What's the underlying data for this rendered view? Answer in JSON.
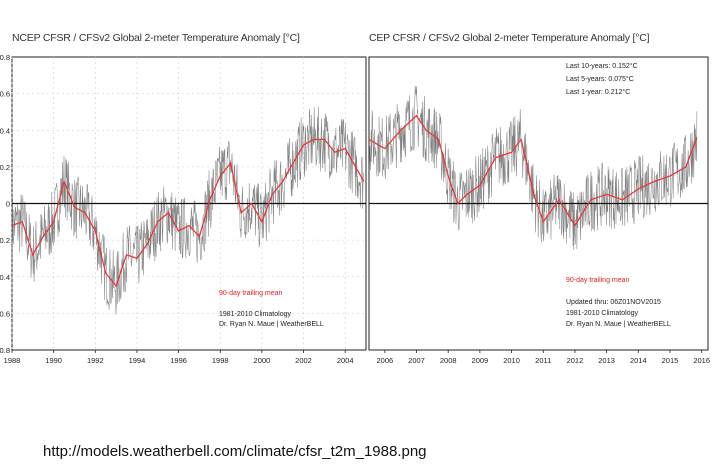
{
  "left_panel": {
    "title": "NCEP CFSR / CFSv2 Global 2-meter Temperature Anomaly [°C]",
    "y_ticks": [
      "0.8",
      "0.6",
      "0.4",
      "0.2",
      "0",
      "-0.2",
      "-0.4",
      "-0.6",
      "-0.8"
    ],
    "x_ticks": [
      "1988",
      "1990",
      "1992",
      "1994",
      "1996",
      "1998",
      "2000",
      "2002",
      "2004"
    ],
    "mean_label": "90-day trailing mean",
    "climatology_label": "1981-2010 Climatology",
    "credit_label": "Dr. Ryan N. Maue | WeatherBELL"
  },
  "right_panel": {
    "title": "CEP CFSR / CFSv2 Global 2-meter Temperature Anomaly [°C]",
    "x_ticks": [
      "2006",
      "2007",
      "2008",
      "2009",
      "2010",
      "2011",
      "2012",
      "2013",
      "2014",
      "2015",
      "2016"
    ],
    "stats": [
      "Last 10-years: 0.152°C",
      "Last 5-years: 0.075°C",
      "Last 1-year:  0.212°C"
    ],
    "mean_label": "90-day trailing mean",
    "updated_label": "Updated thru: 06Z01NOV2015",
    "climatology_label": "1981-2010 Climatology",
    "credit_label": "Dr. Ryan N. Maue | WeatherBELL"
  },
  "source_url": "http://models.weatherbell.com/climate/cfsr_t2m_1988.png",
  "colors": {
    "mean_line": "#e8383d",
    "daily_line": "#555555",
    "zero_line": "#111111",
    "grid": "#cfcfcf"
  },
  "chart_data": [
    {
      "type": "line",
      "title": "NCEP CFSR / CFSv2 Global 2-meter Temperature Anomaly [°C]",
      "xlabel": "",
      "ylabel": "",
      "xlim": [
        1988,
        2005
      ],
      "ylim": [
        -0.8,
        0.8
      ],
      "grid": true,
      "series": [
        {
          "name": "90-day trailing mean",
          "x": [
            1988.0,
            1988.5,
            1989.0,
            1989.5,
            1990.0,
            1990.5,
            1991.0,
            1991.5,
            1992.0,
            1992.5,
            1993.0,
            1993.5,
            1994.0,
            1994.5,
            1995.0,
            1995.5,
            1996.0,
            1996.5,
            1997.0,
            1997.5,
            1998.0,
            1998.5,
            1999.0,
            1999.5,
            2000.0,
            2000.5,
            2001.0,
            2001.5,
            2002.0,
            2002.5,
            2003.0,
            2003.5,
            2004.0,
            2004.5,
            2004.9
          ],
          "y": [
            -0.12,
            -0.1,
            -0.28,
            -0.18,
            -0.1,
            0.12,
            -0.02,
            -0.05,
            -0.15,
            -0.38,
            -0.45,
            -0.28,
            -0.3,
            -0.22,
            -0.1,
            -0.05,
            -0.15,
            -0.12,
            -0.18,
            0.02,
            0.15,
            0.22,
            -0.05,
            0.0,
            -0.1,
            0.05,
            0.12,
            0.22,
            0.32,
            0.35,
            0.35,
            0.28,
            0.3,
            0.2,
            0.12
          ]
        }
      ]
    },
    {
      "type": "line",
      "title": "CEP CFSR / CFSv2 Global 2-meter Temperature Anomaly [°C]",
      "xlabel": "",
      "ylabel": "",
      "xlim": [
        2005.5,
        2016.2
      ],
      "ylim": [
        -0.8,
        0.8
      ],
      "grid": false,
      "series": [
        {
          "name": "90-day trailing mean",
          "x": [
            2005.5,
            2006.0,
            2006.5,
            2007.0,
            2007.3,
            2007.7,
            2008.0,
            2008.3,
            2008.6,
            2009.0,
            2009.5,
            2010.0,
            2010.3,
            2010.7,
            2011.0,
            2011.5,
            2012.0,
            2012.5,
            2013.0,
            2013.5,
            2014.0,
            2014.5,
            2015.0,
            2015.5,
            2015.85
          ],
          "y": [
            0.35,
            0.3,
            0.4,
            0.48,
            0.4,
            0.35,
            0.15,
            0.0,
            0.05,
            0.1,
            0.25,
            0.28,
            0.35,
            0.05,
            -0.1,
            0.02,
            -0.12,
            0.02,
            0.05,
            0.02,
            0.08,
            0.12,
            0.15,
            0.2,
            0.36
          ]
        }
      ]
    }
  ]
}
